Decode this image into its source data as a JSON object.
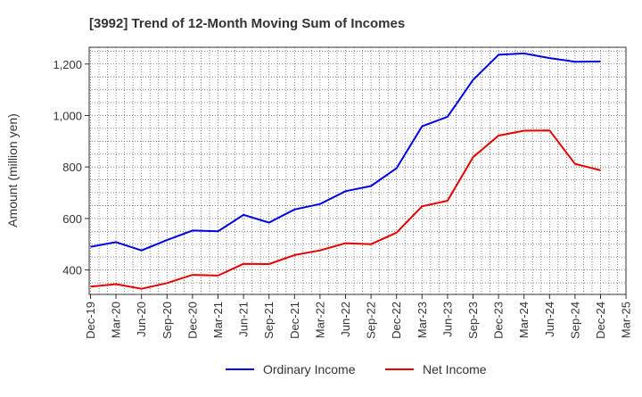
{
  "chart_data": {
    "type": "line",
    "title": "[3992]  Trend of 12-Month Moving Sum of Incomes",
    "xlabel": "",
    "ylabel": "Amount (million yen)",
    "ylim": [
      305,
      1265
    ],
    "yticks": [
      400,
      600,
      800,
      1000,
      1200
    ],
    "ytick_labels": [
      "400",
      "600",
      "800",
      "1,000",
      "1,200"
    ],
    "grid": true,
    "legend_position": "bottom-center",
    "x_tick_labels": [
      "Dec-19",
      "Mar-20",
      "Jun-20",
      "Sep-20",
      "Dec-20",
      "Mar-21",
      "Jun-21",
      "Sep-21",
      "Dec-21",
      "Mar-22",
      "Jun-22",
      "Sep-22",
      "Dec-22",
      "Mar-23",
      "Jun-23",
      "Sep-23",
      "Dec-23",
      "Mar-24",
      "Jun-24",
      "Sep-24",
      "Dec-24",
      "Mar-25"
    ],
    "categories": [
      "Dec-19",
      "Mar-20",
      "Jun-20",
      "Sep-20",
      "Dec-20",
      "Mar-21",
      "Jun-21",
      "Sep-21",
      "Dec-21",
      "Mar-22",
      "Jun-22",
      "Sep-22",
      "Dec-22",
      "Mar-23",
      "Jun-23",
      "Sep-23",
      "Dec-23",
      "Mar-24",
      "Jun-24",
      "Sep-24",
      "Dec-24"
    ],
    "series": [
      {
        "name": "Ordinary Income",
        "color": "#0000e6",
        "values": [
          490,
          508,
          476,
          516,
          553,
          550,
          614,
          584,
          635,
          656,
          706,
          726,
          795,
          958,
          995,
          1138,
          1236,
          1241,
          1223,
          1209,
          1210
        ]
      },
      {
        "name": "Net Income",
        "color": "#e60000",
        "values": [
          335,
          345,
          327,
          349,
          381,
          378,
          424,
          423,
          458,
          476,
          504,
          500,
          545,
          647,
          669,
          838,
          922,
          941,
          942,
          812,
          787
        ]
      }
    ]
  }
}
